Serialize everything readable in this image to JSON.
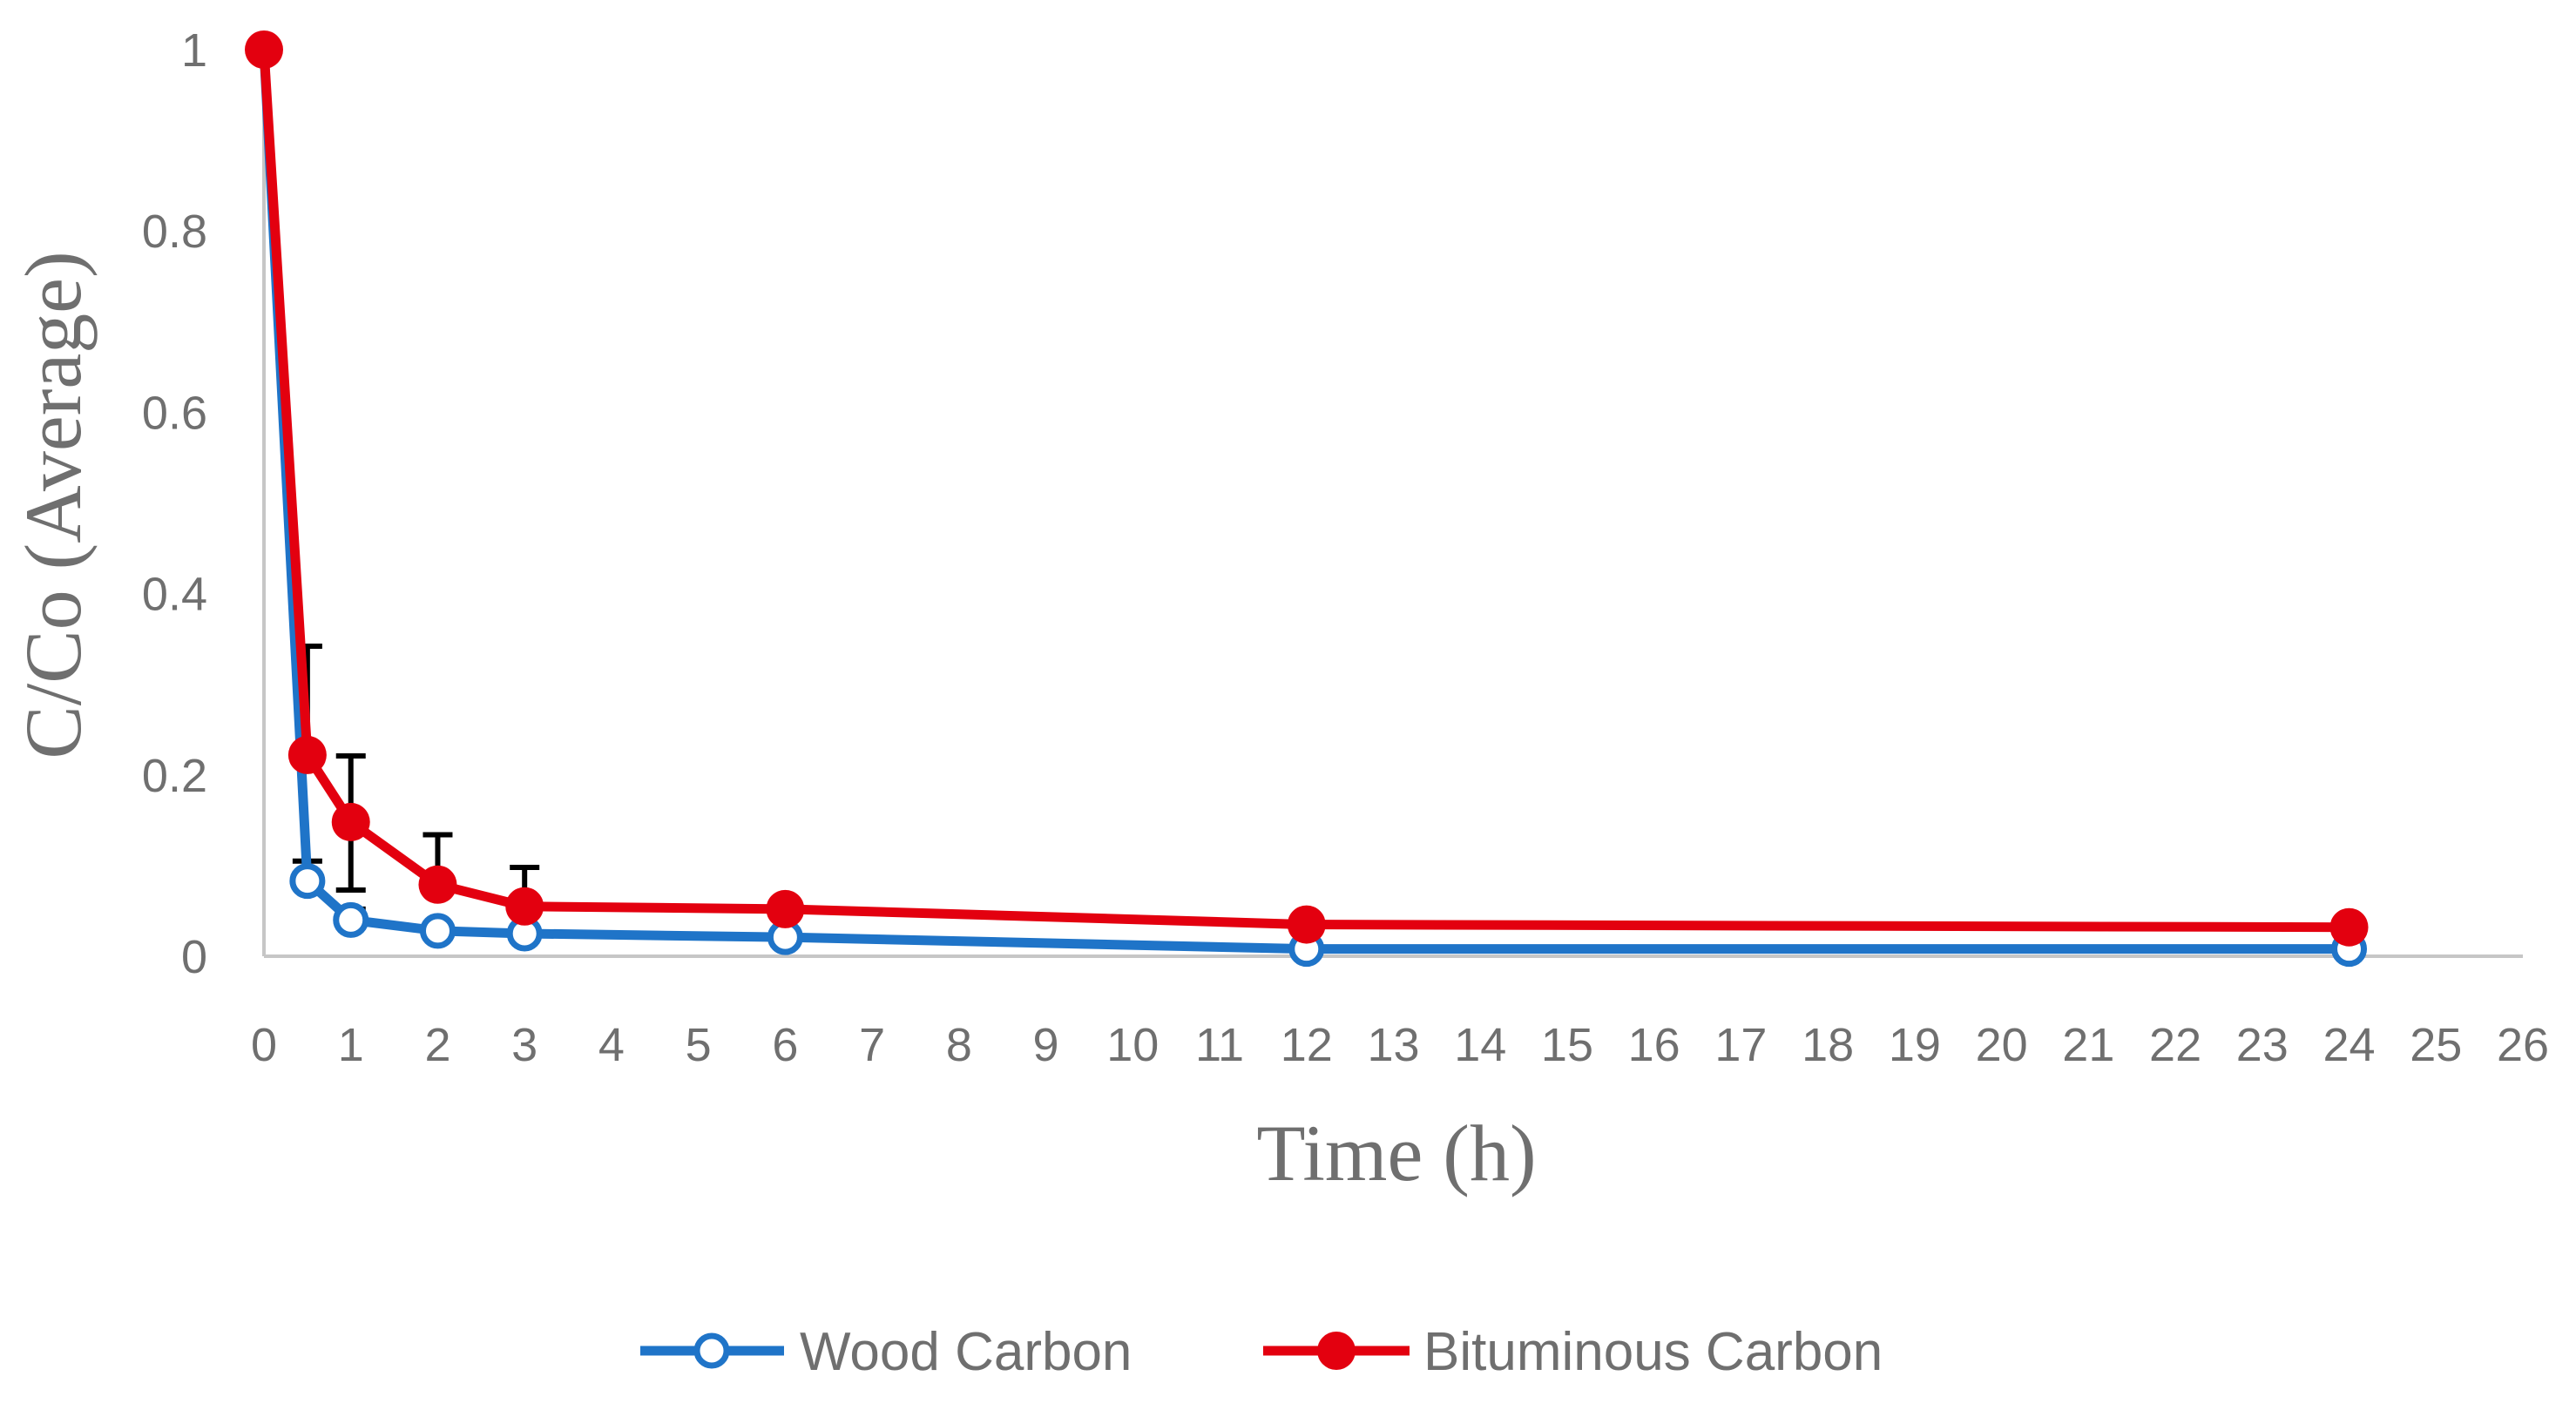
{
  "chart_data": {
    "type": "line",
    "xlabel": "Time (h)",
    "ylabel": "C/Co (Average)",
    "xlim": [
      0,
      26
    ],
    "ylim": [
      0,
      1
    ],
    "x_ticks": [
      "0",
      "1",
      "2",
      "3",
      "4",
      "5",
      "6",
      "7",
      "8",
      "9",
      "10",
      "11",
      "12",
      "13",
      "14",
      "15",
      "16",
      "17",
      "18",
      "19",
      "20",
      "21",
      "22",
      "23",
      "24",
      "25",
      "26"
    ],
    "y_ticks": [
      "0",
      "0.2",
      "0.4",
      "0.6",
      "0.8",
      "1"
    ],
    "grid": false,
    "legend_position": "bottom",
    "series": [
      {
        "name": "Wood Carbon",
        "color": "#1f74c8",
        "marker": "open-circle",
        "x": [
          0,
          0.5,
          1,
          2,
          3,
          6,
          12,
          24
        ],
        "y": [
          1,
          0.083,
          0.04,
          0.028,
          0.025,
          0.021,
          0.008,
          0.008
        ],
        "err_plus": [
          0,
          0.022,
          0.012,
          0,
          0,
          0,
          0,
          0
        ]
      },
      {
        "name": "Bituminous Carbon",
        "color": "#e3000f",
        "marker": "filled-circle",
        "x": [
          0,
          0.5,
          1,
          2,
          3,
          6,
          12,
          24
        ],
        "y": [
          1,
          0.222,
          0.148,
          0.079,
          0.055,
          0.052,
          0.035,
          0.032
        ],
        "err_plus": [
          0,
          0.12,
          0.073,
          0.055,
          0.043,
          0,
          0,
          0
        ],
        "err_minus": [
          0,
          0,
          0.075,
          0,
          0,
          0,
          0,
          0
        ]
      }
    ]
  }
}
